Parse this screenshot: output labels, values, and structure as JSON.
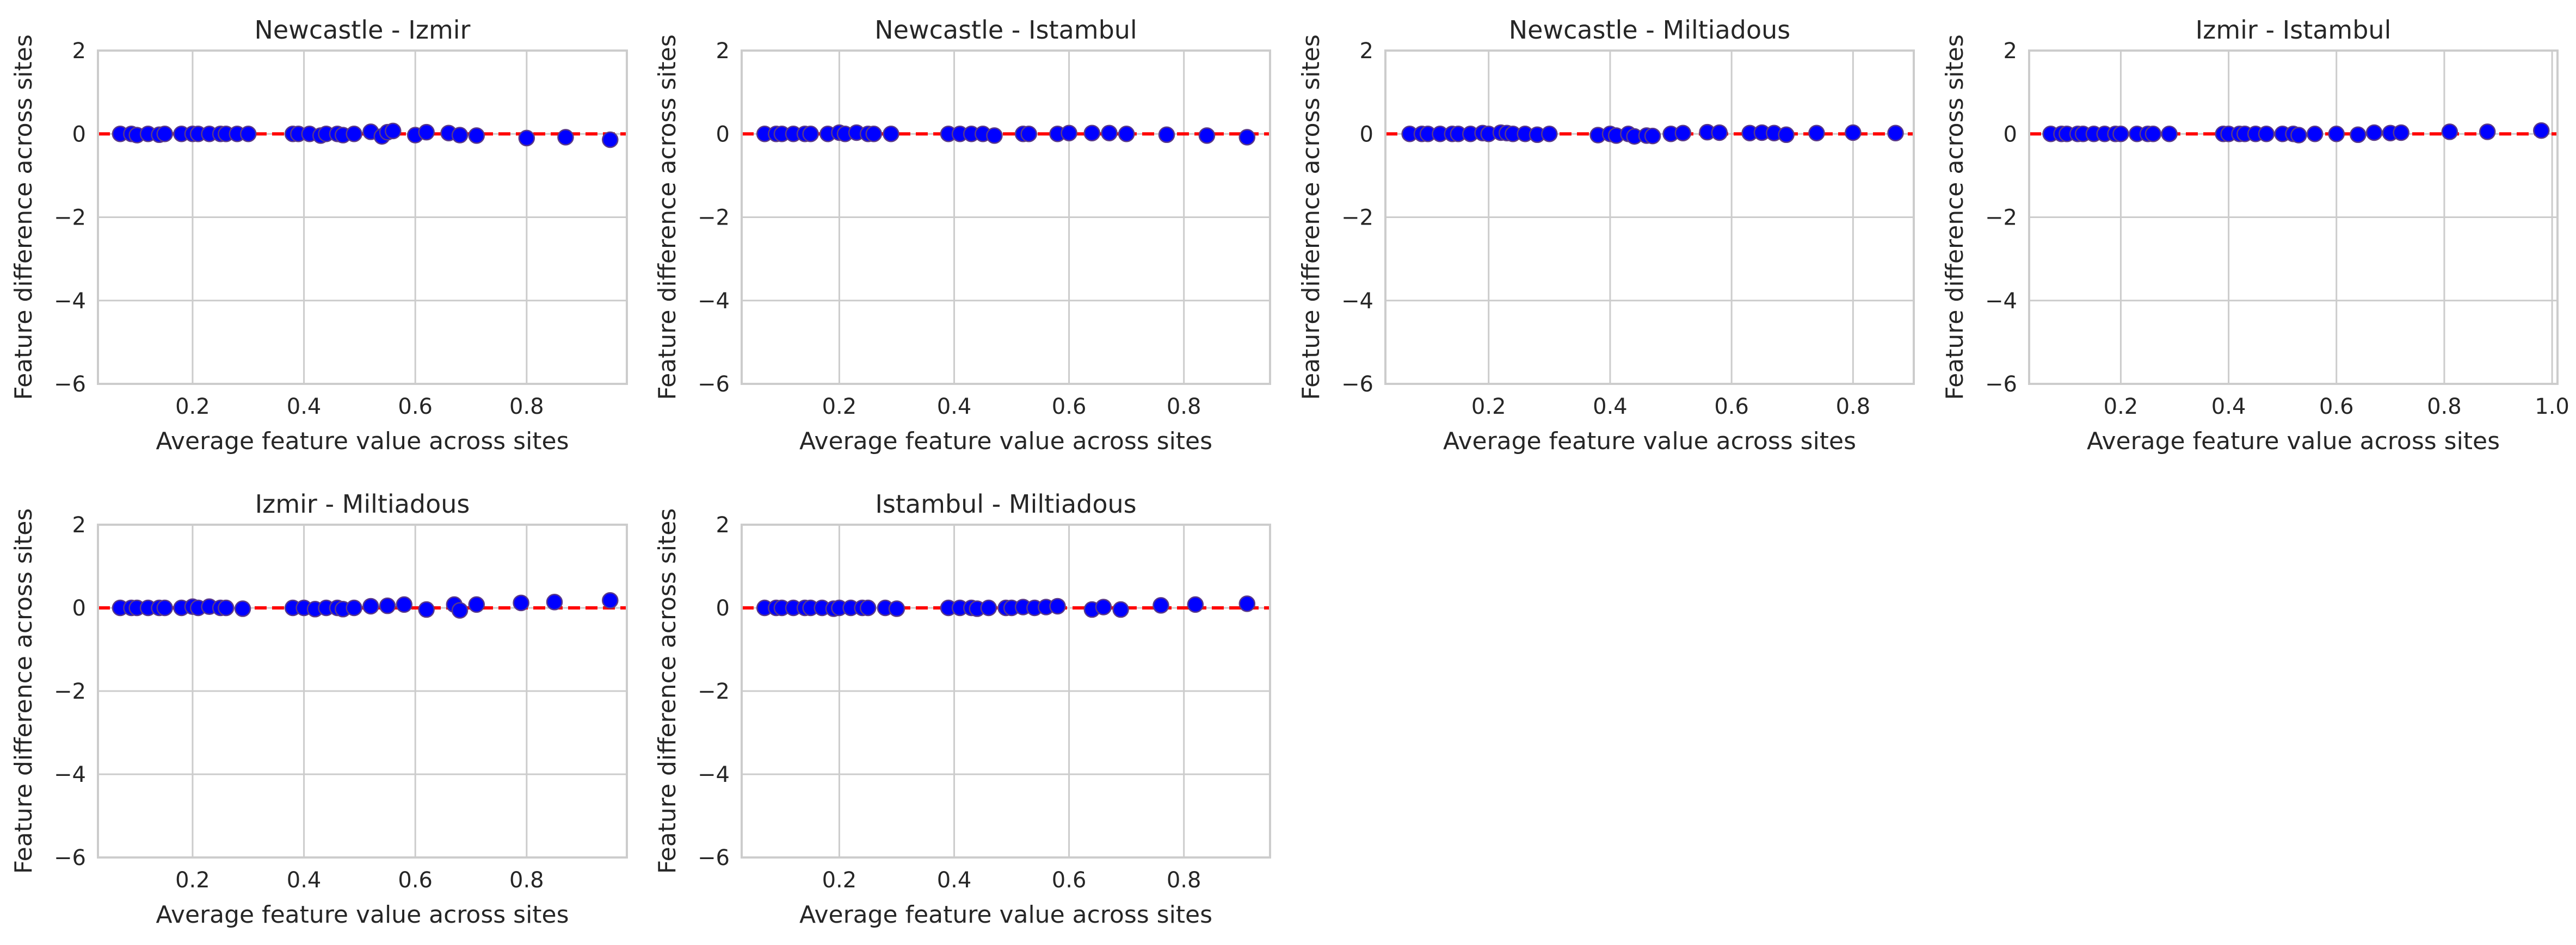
{
  "figure": {
    "colors": {
      "point_fill": "#0000ff",
      "point_edge": "#5a3a8a",
      "reference_line": "#ff0000",
      "grid": "#cccccc",
      "axes_edge": "#cccccc",
      "text": "#262626",
      "background": "#ffffff"
    }
  },
  "chart_data": [
    {
      "type": "scatter",
      "title": "Newcastle - Izmir",
      "xlabel": "Average feature value across sites",
      "ylabel": "Feature difference across sites",
      "xlim": [
        0.03,
        0.98
      ],
      "ylim": [
        -6,
        2
      ],
      "xticks": [
        0.2,
        0.4,
        0.6,
        0.8
      ],
      "xtick_labels": [
        "0.2",
        "0.4",
        "0.6",
        "0.8"
      ],
      "yticks": [
        -6,
        -4,
        -2,
        0,
        2
      ],
      "ytick_labels": [
        "−6",
        "−4",
        "−2",
        "0",
        "2"
      ],
      "grid": true,
      "reference_line": {
        "y": 0,
        "style": "dashed"
      },
      "x": [
        0.07,
        0.09,
        0.1,
        0.12,
        0.14,
        0.15,
        0.18,
        0.2,
        0.21,
        0.23,
        0.25,
        0.26,
        0.28,
        0.3,
        0.38,
        0.39,
        0.41,
        0.43,
        0.44,
        0.46,
        0.47,
        0.49,
        0.52,
        0.54,
        0.55,
        0.56,
        0.6,
        0.62,
        0.66,
        0.68,
        0.71,
        0.8,
        0.87,
        0.95
      ],
      "y": [
        0.0,
        0.0,
        -0.03,
        0.0,
        -0.02,
        0.0,
        0.0,
        0.0,
        0.0,
        0.0,
        0.0,
        0.0,
        0.0,
        0.0,
        0.0,
        0.0,
        0.0,
        -0.04,
        0.0,
        0.0,
        -0.03,
        0.0,
        0.05,
        -0.06,
        0.04,
        0.07,
        -0.03,
        0.04,
        0.02,
        -0.03,
        -0.04,
        -0.1,
        -0.08,
        -0.14
      ]
    },
    {
      "type": "scatter",
      "title": "Newcastle - Istambul",
      "xlabel": "Average feature value across sites",
      "ylabel": "Feature difference across sites",
      "xlim": [
        0.03,
        0.95
      ],
      "ylim": [
        -6,
        2
      ],
      "xticks": [
        0.2,
        0.4,
        0.6,
        0.8
      ],
      "xtick_labels": [
        "0.2",
        "0.4",
        "0.6",
        "0.8"
      ],
      "yticks": [
        -6,
        -4,
        -2,
        0,
        2
      ],
      "ytick_labels": [
        "−6",
        "−4",
        "−2",
        "0",
        "2"
      ],
      "grid": true,
      "reference_line": {
        "y": 0,
        "style": "dashed"
      },
      "x": [
        0.07,
        0.09,
        0.1,
        0.12,
        0.14,
        0.15,
        0.18,
        0.2,
        0.21,
        0.23,
        0.25,
        0.26,
        0.29,
        0.39,
        0.41,
        0.43,
        0.45,
        0.47,
        0.52,
        0.53,
        0.58,
        0.6,
        0.64,
        0.67,
        0.7,
        0.77,
        0.84,
        0.91
      ],
      "y": [
        0.0,
        0.0,
        0.0,
        0.0,
        0.0,
        0.0,
        0.0,
        0.03,
        0.0,
        0.03,
        0.0,
        0.0,
        0.0,
        0.0,
        0.0,
        0.0,
        0.0,
        -0.04,
        0.0,
        0.0,
        0.0,
        0.02,
        0.02,
        0.02,
        0.0,
        -0.02,
        -0.04,
        -0.08
      ]
    },
    {
      "type": "scatter",
      "title": "Newcastle - Miltiadous",
      "xlabel": "Average feature value across sites",
      "ylabel": "Feature difference across sites",
      "xlim": [
        0.03,
        0.9
      ],
      "ylim": [
        -6,
        2
      ],
      "xticks": [
        0.2,
        0.4,
        0.6,
        0.8
      ],
      "xtick_labels": [
        "0.2",
        "0.4",
        "0.6",
        "0.8"
      ],
      "yticks": [
        -6,
        -4,
        -2,
        0,
        2
      ],
      "ytick_labels": [
        "−6",
        "−4",
        "−2",
        "0",
        "2"
      ],
      "grid": true,
      "reference_line": {
        "y": 0,
        "style": "dashed"
      },
      "x": [
        0.07,
        0.09,
        0.1,
        0.12,
        0.14,
        0.15,
        0.17,
        0.19,
        0.2,
        0.22,
        0.23,
        0.24,
        0.26,
        0.28,
        0.3,
        0.38,
        0.4,
        0.41,
        0.43,
        0.44,
        0.46,
        0.47,
        0.5,
        0.52,
        0.56,
        0.58,
        0.63,
        0.65,
        0.67,
        0.69,
        0.74,
        0.8,
        0.87
      ],
      "y": [
        0.0,
        0.0,
        0.0,
        0.0,
        0.0,
        0.0,
        0.0,
        0.02,
        0.0,
        0.03,
        0.02,
        0.0,
        0.0,
        -0.02,
        0.0,
        -0.03,
        0.0,
        -0.04,
        0.0,
        -0.06,
        -0.04,
        -0.05,
        0.0,
        0.02,
        0.04,
        0.03,
        0.02,
        0.03,
        0.02,
        -0.02,
        0.02,
        0.03,
        0.02
      ]
    },
    {
      "type": "scatter",
      "title": "Izmir - Istambul",
      "xlabel": "Average feature value across sites",
      "ylabel": "Feature difference across sites",
      "xlim": [
        0.03,
        1.01
      ],
      "ylim": [
        -6,
        2
      ],
      "xticks": [
        0.2,
        0.4,
        0.6,
        0.8,
        1.0
      ],
      "xtick_labels": [
        "0.2",
        "0.4",
        "0.6",
        "0.8",
        "1.0"
      ],
      "yticks": [
        -6,
        -4,
        -2,
        0,
        2
      ],
      "ytick_labels": [
        "−6",
        "−4",
        "−2",
        "0",
        "2"
      ],
      "grid": true,
      "reference_line": {
        "y": 0,
        "style": "dashed"
      },
      "x": [
        0.07,
        0.09,
        0.1,
        0.12,
        0.13,
        0.15,
        0.17,
        0.19,
        0.2,
        0.23,
        0.25,
        0.26,
        0.29,
        0.39,
        0.4,
        0.42,
        0.43,
        0.45,
        0.47,
        0.5,
        0.52,
        0.53,
        0.56,
        0.6,
        0.64,
        0.67,
        0.7,
        0.72,
        0.81,
        0.88,
        0.98
      ],
      "y": [
        0.0,
        0.0,
        0.0,
        0.0,
        0.0,
        0.0,
        0.0,
        0.0,
        0.0,
        0.0,
        0.0,
        0.0,
        0.0,
        0.0,
        0.0,
        0.0,
        0.0,
        0.0,
        0.0,
        0.0,
        0.0,
        -0.03,
        0.0,
        0.0,
        -0.02,
        0.03,
        0.02,
        0.03,
        0.05,
        0.05,
        0.08
      ]
    },
    {
      "type": "scatter",
      "title": "Izmir - Miltiadous",
      "xlabel": "Average feature value across sites",
      "ylabel": "Feature difference across sites",
      "xlim": [
        0.03,
        0.98
      ],
      "ylim": [
        -6,
        2
      ],
      "xticks": [
        0.2,
        0.4,
        0.6,
        0.8
      ],
      "xtick_labels": [
        "0.2",
        "0.4",
        "0.6",
        "0.8"
      ],
      "yticks": [
        -6,
        -4,
        -2,
        0,
        2
      ],
      "ytick_labels": [
        "−6",
        "−4",
        "−2",
        "0",
        "2"
      ],
      "grid": true,
      "reference_line": {
        "y": 0,
        "style": "dashed"
      },
      "x": [
        0.07,
        0.09,
        0.1,
        0.12,
        0.14,
        0.15,
        0.18,
        0.2,
        0.21,
        0.23,
        0.25,
        0.26,
        0.29,
        0.38,
        0.4,
        0.42,
        0.44,
        0.46,
        0.47,
        0.49,
        0.52,
        0.55,
        0.58,
        0.62,
        0.67,
        0.68,
        0.71,
        0.79,
        0.85,
        0.95
      ],
      "y": [
        0.0,
        0.0,
        0.0,
        0.0,
        0.0,
        0.0,
        0.0,
        0.03,
        0.0,
        0.03,
        0.0,
        0.0,
        -0.02,
        0.0,
        0.0,
        -0.03,
        0.0,
        0.0,
        -0.03,
        0.0,
        0.04,
        0.05,
        0.08,
        -0.04,
        0.08,
        -0.06,
        0.08,
        0.12,
        0.14,
        0.18
      ]
    },
    {
      "type": "scatter",
      "title": "Istambul - Miltiadous",
      "xlabel": "Average feature value across sites",
      "ylabel": "Feature difference across sites",
      "xlim": [
        0.03,
        0.95
      ],
      "ylim": [
        -6,
        2
      ],
      "xticks": [
        0.2,
        0.4,
        0.6,
        0.8
      ],
      "xtick_labels": [
        "0.2",
        "0.4",
        "0.6",
        "0.8"
      ],
      "yticks": [
        -6,
        -4,
        -2,
        0,
        2
      ],
      "ytick_labels": [
        "−6",
        "−4",
        "−2",
        "0",
        "2"
      ],
      "grid": true,
      "reference_line": {
        "y": 0,
        "style": "dashed"
      },
      "x": [
        0.07,
        0.09,
        0.1,
        0.12,
        0.14,
        0.15,
        0.17,
        0.19,
        0.2,
        0.22,
        0.24,
        0.25,
        0.28,
        0.3,
        0.39,
        0.41,
        0.43,
        0.44,
        0.46,
        0.49,
        0.5,
        0.52,
        0.54,
        0.56,
        0.58,
        0.64,
        0.66,
        0.69,
        0.76,
        0.82,
        0.91
      ],
      "y": [
        0.0,
        0.0,
        0.0,
        0.0,
        0.0,
        0.0,
        0.0,
        -0.02,
        0.0,
        0.0,
        0.0,
        0.0,
        0.0,
        -0.02,
        0.0,
        0.0,
        0.0,
        -0.02,
        0.0,
        0.0,
        0.0,
        0.02,
        0.0,
        0.02,
        0.04,
        -0.04,
        0.02,
        -0.04,
        0.06,
        0.08,
        0.1
      ]
    }
  ]
}
